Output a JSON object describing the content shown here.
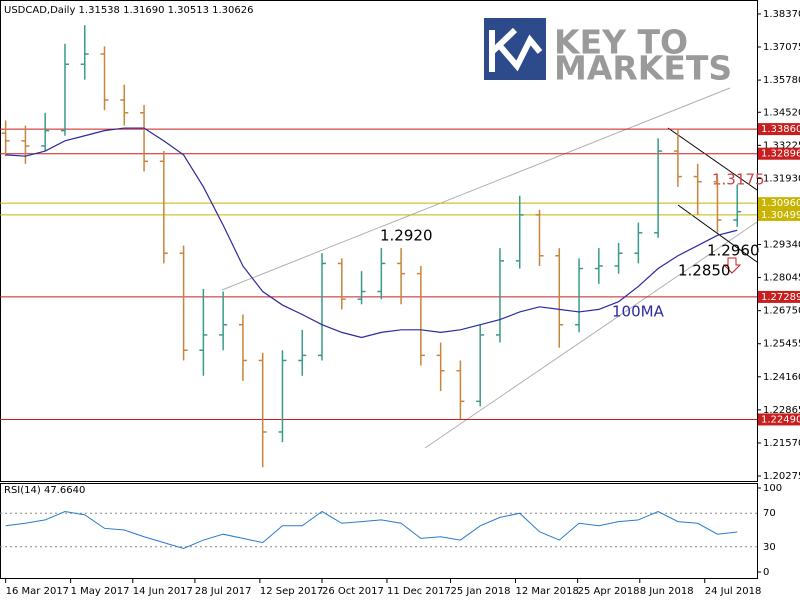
{
  "chart_data": [
    {
      "type": "ohlc",
      "title": "USDCAD,Daily  1.31538 1.31690 1.30513 1.30626",
      "x": [
        "2017-03-16",
        "2017-03-30",
        "2017-04-13",
        "2017-04-27",
        "2017-05-11",
        "2017-05-25",
        "2017-06-08",
        "2017-06-22",
        "2017-07-06",
        "2017-07-20",
        "2017-08-03",
        "2017-08-17",
        "2017-08-31",
        "2017-09-14",
        "2017-09-28",
        "2017-10-12",
        "2017-10-26",
        "2017-11-09",
        "2017-11-23",
        "2017-12-07",
        "2017-12-21",
        "2018-01-04",
        "2018-01-18",
        "2018-02-01",
        "2018-02-15",
        "2018-03-01",
        "2018-03-15",
        "2018-03-29",
        "2018-04-12",
        "2018-04-26",
        "2018-05-10",
        "2018-05-24",
        "2018-06-07",
        "2018-06-21",
        "2018-07-05",
        "2018-07-19",
        "2018-08-02",
        "2018-08-16"
      ],
      "open": [
        1.337,
        1.334,
        1.332,
        1.338,
        1.364,
        1.368,
        1.35,
        1.345,
        1.326,
        1.29,
        1.252,
        1.258,
        1.262,
        1.248,
        1.22,
        1.248,
        1.25,
        1.286,
        1.272,
        1.275,
        1.286,
        1.282,
        1.25,
        1.244,
        1.232,
        1.258,
        1.287,
        1.305,
        1.289,
        1.262,
        1.284,
        1.285,
        1.29,
        1.298,
        1.33,
        1.32,
        1.318,
        1.303
      ],
      "high": [
        1.342,
        1.34,
        1.345,
        1.372,
        1.3793,
        1.371,
        1.356,
        1.348,
        1.33,
        1.293,
        1.276,
        1.275,
        1.266,
        1.251,
        1.252,
        1.26,
        1.29,
        1.288,
        1.283,
        1.292,
        1.292,
        1.285,
        1.255,
        1.248,
        1.262,
        1.292,
        1.3125,
        1.307,
        1.292,
        1.288,
        1.292,
        1.294,
        1.302,
        1.335,
        1.3386,
        1.325,
        1.3195,
        1.3169
      ],
      "low": [
        1.328,
        1.325,
        1.33,
        1.336,
        1.358,
        1.346,
        1.34,
        1.322,
        1.286,
        1.248,
        1.242,
        1.252,
        1.24,
        1.2062,
        1.216,
        1.242,
        1.248,
        1.268,
        1.27,
        1.272,
        1.27,
        1.246,
        1.236,
        1.225,
        1.23,
        1.255,
        1.284,
        1.285,
        1.253,
        1.259,
        1.278,
        1.282,
        1.286,
        1.296,
        1.316,
        1.305,
        1.298,
        1.3003
      ],
      "close": [
        1.334,
        1.332,
        1.338,
        1.364,
        1.368,
        1.35,
        1.345,
        1.326,
        1.29,
        1.252,
        1.258,
        1.262,
        1.248,
        1.22,
        1.248,
        1.25,
        1.286,
        1.272,
        1.275,
        1.286,
        1.282,
        1.25,
        1.244,
        1.232,
        1.258,
        1.287,
        1.305,
        1.289,
        1.262,
        1.284,
        1.285,
        1.29,
        1.298,
        1.33,
        1.32,
        1.318,
        1.303,
        1.30626
      ],
      "up_color": "#3a9a8a",
      "down_color": "#c8843c",
      "ma": {
        "name": "100MA",
        "color": "#2a2aa0",
        "values": [
          1.3285,
          1.328,
          1.33,
          1.334,
          1.336,
          1.338,
          1.339,
          1.339,
          1.334,
          1.3285,
          1.316,
          1.301,
          1.285,
          1.275,
          1.2697,
          1.266,
          1.262,
          1.259,
          1.257,
          1.259,
          1.26,
          1.26,
          1.259,
          1.26,
          1.262,
          1.264,
          1.267,
          1.269,
          1.268,
          1.267,
          1.268,
          1.271,
          1.277,
          1.284,
          1.289,
          1.293,
          1.297,
          1.299
        ]
      },
      "levels": [
        {
          "value": 1.3386,
          "label": "1.33860",
          "color": "#c81e1e"
        },
        {
          "value": 1.32896,
          "label": "1.32896",
          "color": "#c81e1e"
        },
        {
          "value": 1.3096,
          "label": "1.30960",
          "color": "#c8b400"
        },
        {
          "value": 1.30499,
          "label": "1.30499",
          "color": "#c8b400"
        },
        {
          "value": 1.27289,
          "label": "1.27289",
          "color": "#c81e1e"
        },
        {
          "value": 1.2249,
          "label": "1.22490",
          "color": "#c81e1e"
        }
      ],
      "annotations": [
        "1.2920",
        "1.3175",
        "1.2960",
        "1.2850"
      ],
      "logo": [
        "KEY TO",
        "MARKETS"
      ],
      "xlim": [
        "2017-03-12",
        "2018-08-30"
      ],
      "xticks": [
        {
          "value": "2017-03-16",
          "label": "16 Mar 2017"
        },
        {
          "value": "2017-05-01",
          "label": "1 May 2017"
        },
        {
          "value": "2017-06-14",
          "label": "14 Jun 2017"
        },
        {
          "value": "2017-07-28",
          "label": "28 Jul 2017"
        },
        {
          "value": "2017-09-12",
          "label": "12 Sep 2017"
        },
        {
          "value": "2017-10-26",
          "label": "26 Oct 2017"
        },
        {
          "value": "2017-12-11",
          "label": "11 Dec 2017"
        },
        {
          "value": "2018-01-25",
          "label": "25 Jan 2018"
        },
        {
          "value": "2018-03-12",
          "label": "12 Mar 2018"
        },
        {
          "value": "2018-04-25",
          "label": "25 Apr 2018"
        },
        {
          "value": "2018-06-08",
          "label": "8 Jun 2018"
        },
        {
          "value": "2018-07-24",
          "label": "24 Jul 2018"
        }
      ],
      "ylim": [
        1.2008,
        1.3872
      ],
      "yticks": [
        {
          "value": 1.3837,
          "label": "1.38370"
        },
        1.37075,
        {
          "value": 1.3578,
          "label": "1.35780"
        },
        {
          "value": 1.3452,
          "label": "1.34520"
        },
        1.33225,
        {
          "value": 1.3193,
          "label": "1.31930"
        },
        {
          "value": 1.3067,
          "label": "1.30670"
        },
        {
          "value": 1.2934,
          "label": "1.29340"
        },
        1.28045,
        {
          "value": 1.2675,
          "label": "1.26750"
        },
        1.25455,
        {
          "value": 1.2416,
          "label": "1.24160"
        },
        1.22865,
        {
          "value": 1.2157,
          "label": "1.21570"
        },
        1.20275
      ]
    },
    {
      "type": "line",
      "title": "RSI(14) 47.6640",
      "x": [
        "2017-03-16",
        "2017-03-30",
        "2017-04-13",
        "2017-04-27",
        "2017-05-11",
        "2017-05-25",
        "2017-06-08",
        "2017-06-22",
        "2017-07-06",
        "2017-07-20",
        "2017-08-03",
        "2017-08-17",
        "2017-08-31",
        "2017-09-14",
        "2017-09-28",
        "2017-10-12",
        "2017-10-26",
        "2017-11-09",
        "2017-11-23",
        "2017-12-07",
        "2017-12-21",
        "2018-01-04",
        "2018-01-18",
        "2018-02-01",
        "2018-02-15",
        "2018-03-01",
        "2018-03-15",
        "2018-03-29",
        "2018-04-12",
        "2018-04-26",
        "2018-05-10",
        "2018-05-24",
        "2018-06-07",
        "2018-06-21",
        "2018-07-05",
        "2018-07-19",
        "2018-08-02",
        "2018-08-16"
      ],
      "values": [
        55,
        58,
        62,
        72,
        68,
        52,
        50,
        42,
        35,
        28,
        38,
        45,
        40,
        35,
        55,
        55,
        72,
        58,
        60,
        62,
        58,
        40,
        42,
        38,
        55,
        65,
        70,
        48,
        38,
        58,
        55,
        60,
        62,
        72,
        60,
        58,
        45,
        47.664
      ],
      "color": "#2a7ad0",
      "ylim": [
        0,
        100
      ],
      "yticks": [
        100,
        70,
        30,
        0
      ],
      "grid_dashed": true
    }
  ]
}
